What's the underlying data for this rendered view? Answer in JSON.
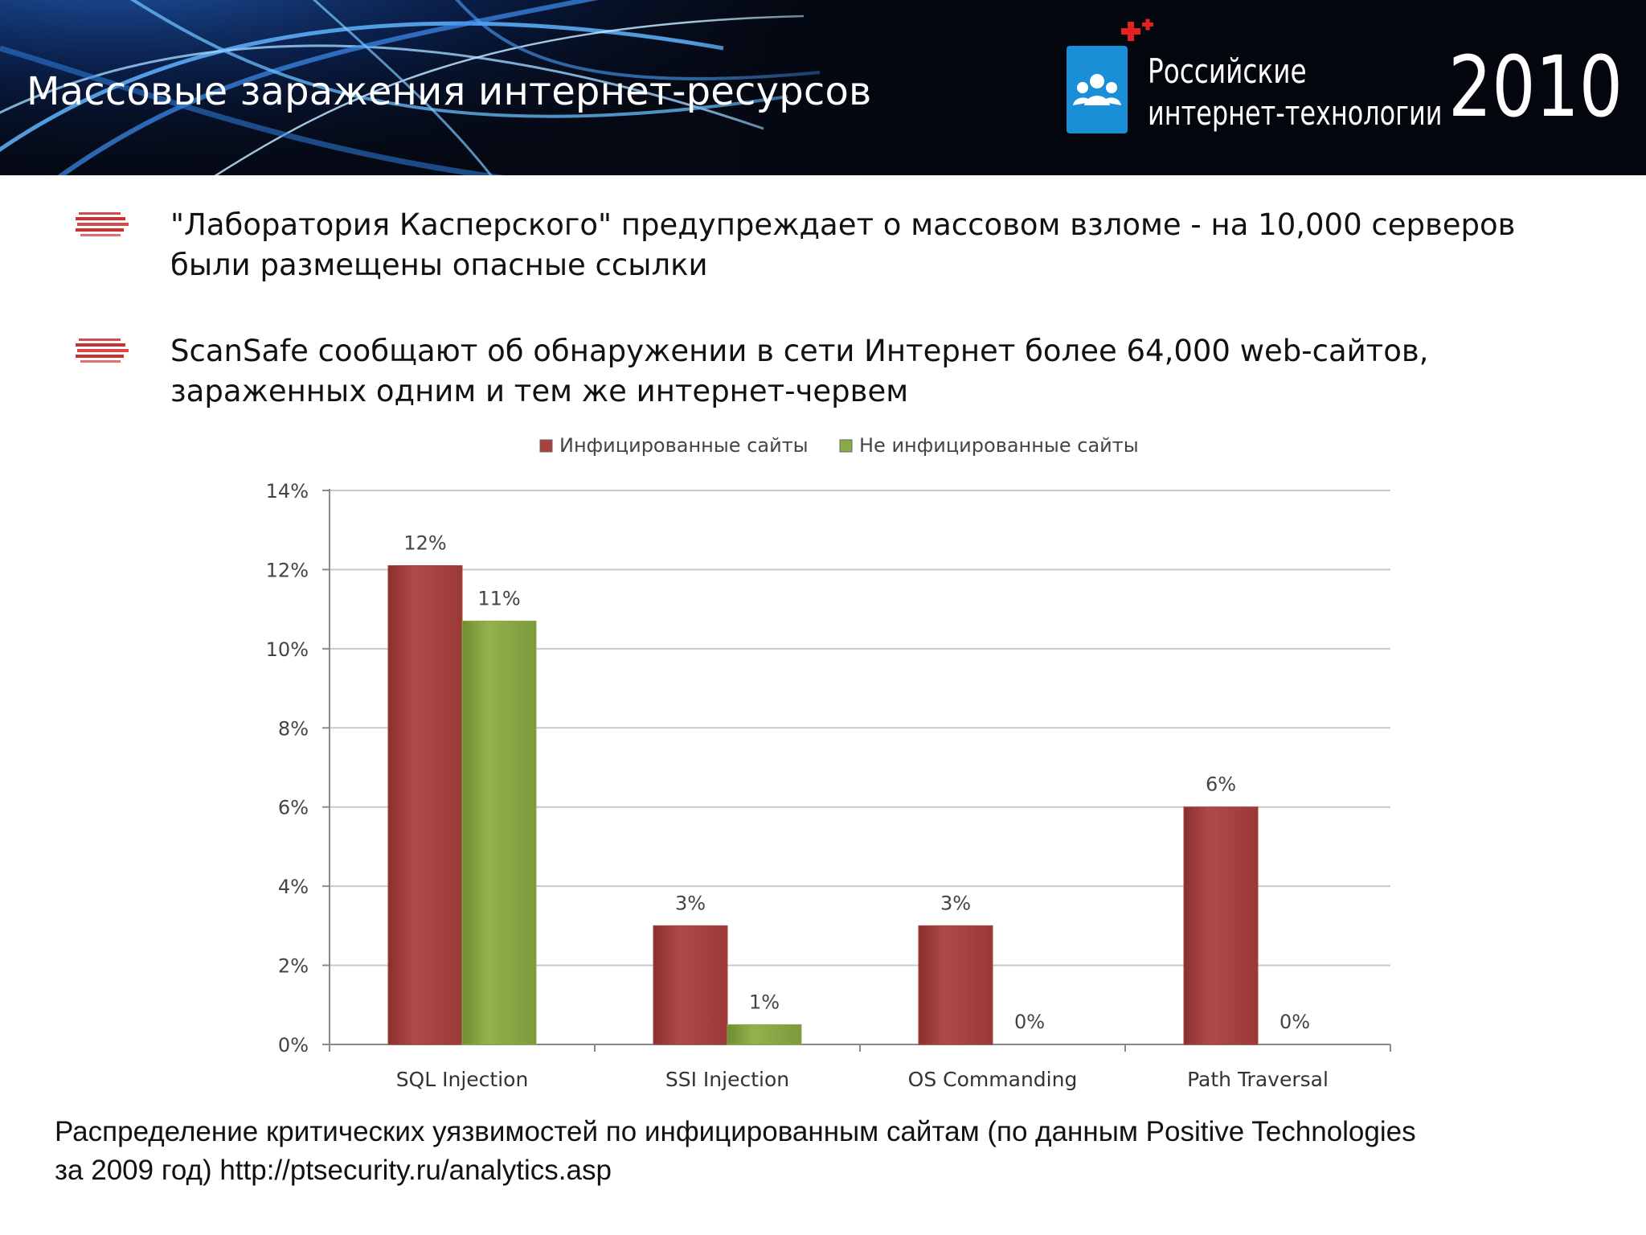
{
  "header": {
    "title": "Массовые заражения интернет-ресурсов",
    "logo": {
      "icon": "people-icon",
      "line1": "Российские",
      "line2": "интернет-технологии",
      "year": "2010",
      "accent_color": "#1a8fd8",
      "plus_color": "#e52020"
    }
  },
  "bullets": [
    {
      "icon": "red-stripes-bullet-icon",
      "lines": [
        "\"Лаборатория Касперского\" предупреждает о массовом взломе - на 10,000 серверов",
        "были размещены опасные ссылки"
      ]
    },
    {
      "icon": "red-stripes-bullet-icon",
      "lines": [
        "ScanSafe сообщают об обнаружении в сети Интернет более 64,000 web-сайтов,",
        "зараженных одним и тем же интернет-червем"
      ]
    }
  ],
  "chart_data": {
    "type": "bar",
    "categories": [
      "SQL Injection",
      "SSI Injection",
      "OS Commanding",
      "Path Traversal"
    ],
    "series": [
      {
        "name": "Инфицированные сайты",
        "values": [
          12.1,
          3.0,
          3.0,
          6.0
        ],
        "labels": [
          "12%",
          "3%",
          "3%",
          "6%"
        ],
        "color": "#a8403f"
      },
      {
        "name": "Не инфицированные сайты",
        "values": [
          10.7,
          0.5,
          0.0,
          0.0
        ],
        "labels": [
          "11%",
          "1%",
          "0%",
          "0%"
        ],
        "color": "#8aaa45"
      }
    ],
    "yticks": [
      "0%",
      "2%",
      "4%",
      "6%",
      "8%",
      "10%",
      "12%",
      "14%"
    ],
    "ylim": [
      0,
      14
    ],
    "ytick_step": 2,
    "grid": true,
    "legend_position": "top"
  },
  "caption": {
    "lines": [
      "Распределение критических уязвимостей по инфицированным сайтам (по данным Positive Technologies",
      "за 2009 год) http://ptsecurity.ru/analytics.asp"
    ]
  }
}
